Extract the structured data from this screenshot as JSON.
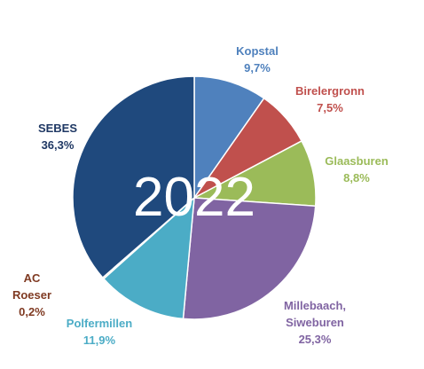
{
  "chart_data": {
    "type": "pie",
    "center_text": "2022",
    "start_angle_deg": 0,
    "direction": "clockwise",
    "slices": [
      {
        "name_lines": [
          "Kopstal"
        ],
        "value_label": "9,7%",
        "value": 9.7,
        "color": "#4F81BD"
      },
      {
        "name_lines": [
          "Birelergronn"
        ],
        "value_label": "7,5%",
        "value": 7.5,
        "color": "#C0504D"
      },
      {
        "name_lines": [
          "Glaasburen"
        ],
        "value_label": "8,8%",
        "value": 8.8,
        "color": "#9BBB59"
      },
      {
        "name_lines": [
          "Millebaach,",
          "Siweburen"
        ],
        "value_label": "25,3%",
        "value": 25.3,
        "color": "#8064A2"
      },
      {
        "name_lines": [
          "Polfermillen"
        ],
        "value_label": "11,9%",
        "value": 11.9,
        "color": "#4BACC6"
      },
      {
        "name_lines": [
          "AC",
          "Roeser"
        ],
        "value_label": "0,2%",
        "value": 0.2,
        "color": "#F79646"
      },
      {
        "name_lines": [
          "SEBES"
        ],
        "value_label": "36,3%",
        "value": 36.3,
        "color": "#1F497D"
      }
    ],
    "label_colors": [
      "#4F81BD",
      "#C0504D",
      "#9BBB59",
      "#8064A2",
      "#4BACC6",
      "#7F3A22",
      "#1F3864"
    ]
  }
}
